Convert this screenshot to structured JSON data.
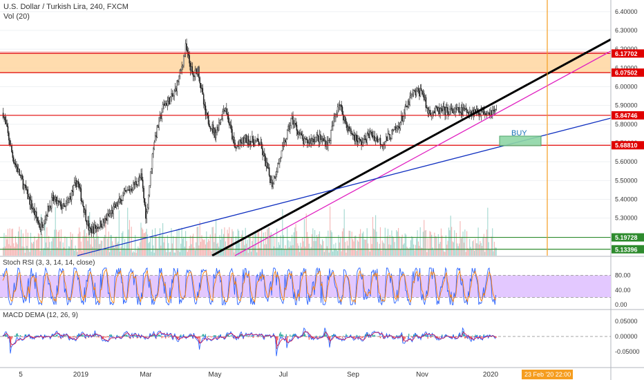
{
  "header": {
    "title": "U.S. Dollar / Turkish Lira, 240, FXCM",
    "vol": "Vol (20)"
  },
  "indicators": {
    "stoch": "Stoch RSI (3, 3, 14, 14, close)",
    "macd": "MACD DEMA (12, 26, 9)"
  },
  "colors": {
    "up": "#26a69a",
    "down": "#ef5350",
    "candle": "#1e1e1e",
    "vol_up": "#8fd0c6",
    "vol_down": "#f3a8a6",
    "level_red": "#e00000",
    "level_green": "#2e8b2e",
    "zone_orange": "#ffd6a0",
    "magenta": "#e020c0",
    "blue": "#1030c0",
    "stoch_band": "#e3c8ff",
    "orange_line": "#f59d1f"
  },
  "chart_data": [
    {
      "type": "candlestick",
      "series_name": "U.S. Dollar / Turkish Lira",
      "ylim": [
        5.1,
        6.44
      ],
      "y_ticks": [
        "6.40000",
        "6.30000",
        "6.20000",
        "6.10000",
        "6.00000",
        "5.90000",
        "5.80000",
        "5.70000",
        "5.60000",
        "5.50000",
        "5.40000",
        "5.30000"
      ],
      "x_ticks": [
        "5",
        "2019",
        "Mar",
        "May",
        "Jul",
        "Sep",
        "Nov",
        "2020"
      ],
      "levels": [
        {
          "value": 6.17702,
          "label": "6.17702",
          "color": "#e00000"
        },
        {
          "value": 6.07502,
          "label": "6.07502",
          "color": "#e00000"
        },
        {
          "value": 5.84746,
          "label": "5.84746",
          "color": "#e00000"
        },
        {
          "value": 5.6881,
          "label": "5.68810",
          "color": "#e00000"
        },
        {
          "value": 5.19728,
          "label": "5.19728",
          "color": "#2e8b2e"
        },
        {
          "value": 5.13396,
          "label": "5.13396",
          "color": "#2e8b2e"
        }
      ],
      "zone": {
        "from": 6.07502,
        "to": 6.17702
      },
      "buy_label": "BUY",
      "key_points": [
        {
          "t": 0,
          "v": 5.86
        },
        {
          "t": 0.02,
          "v": 5.62
        },
        {
          "t": 0.045,
          "v": 5.45
        },
        {
          "t": 0.075,
          "v": 5.25
        },
        {
          "t": 0.1,
          "v": 5.4
        },
        {
          "t": 0.125,
          "v": 5.35
        },
        {
          "t": 0.15,
          "v": 5.5
        },
        {
          "t": 0.175,
          "v": 5.23
        },
        {
          "t": 0.205,
          "v": 5.28
        },
        {
          "t": 0.245,
          "v": 5.42
        },
        {
          "t": 0.28,
          "v": 5.52
        },
        {
          "t": 0.29,
          "v": 5.3
        },
        {
          "t": 0.305,
          "v": 5.7
        },
        {
          "t": 0.325,
          "v": 5.9
        },
        {
          "t": 0.345,
          "v": 5.95
        },
        {
          "t": 0.36,
          "v": 6.08
        },
        {
          "t": 0.37,
          "v": 6.21
        },
        {
          "t": 0.385,
          "v": 6.05
        },
        {
          "t": 0.395,
          "v": 6.1
        },
        {
          "t": 0.41,
          "v": 5.85
        },
        {
          "t": 0.43,
          "v": 5.75
        },
        {
          "t": 0.45,
          "v": 5.9
        },
        {
          "t": 0.47,
          "v": 5.67
        },
        {
          "t": 0.49,
          "v": 5.72
        },
        {
          "t": 0.52,
          "v": 5.7
        },
        {
          "t": 0.545,
          "v": 5.48
        },
        {
          "t": 0.565,
          "v": 5.65
        },
        {
          "t": 0.585,
          "v": 5.83
        },
        {
          "t": 0.61,
          "v": 5.7
        },
        {
          "t": 0.635,
          "v": 5.73
        },
        {
          "t": 0.66,
          "v": 5.7
        },
        {
          "t": 0.68,
          "v": 5.92
        },
        {
          "t": 0.7,
          "v": 5.77
        },
        {
          "t": 0.725,
          "v": 5.7
        },
        {
          "t": 0.745,
          "v": 5.75
        },
        {
          "t": 0.77,
          "v": 5.7
        },
        {
          "t": 0.8,
          "v": 5.78
        },
        {
          "t": 0.83,
          "v": 5.96
        },
        {
          "t": 0.85,
          "v": 5.98
        },
        {
          "t": 0.86,
          "v": 5.87
        }
      ]
    },
    {
      "type": "line",
      "series_name": "Stoch RSI",
      "ylim": [
        0,
        100
      ],
      "y_ticks": [
        "80.00",
        "40.00",
        "0.00"
      ],
      "band": [
        20,
        80
      ]
    },
    {
      "type": "line",
      "series_name": "MACD DEMA",
      "ylim": [
        -0.09,
        0.08
      ],
      "y_ticks": [
        "0.05000",
        "0.00000",
        "-0.05000"
      ]
    }
  ],
  "time_badge": "23 Feb '20   22:00"
}
